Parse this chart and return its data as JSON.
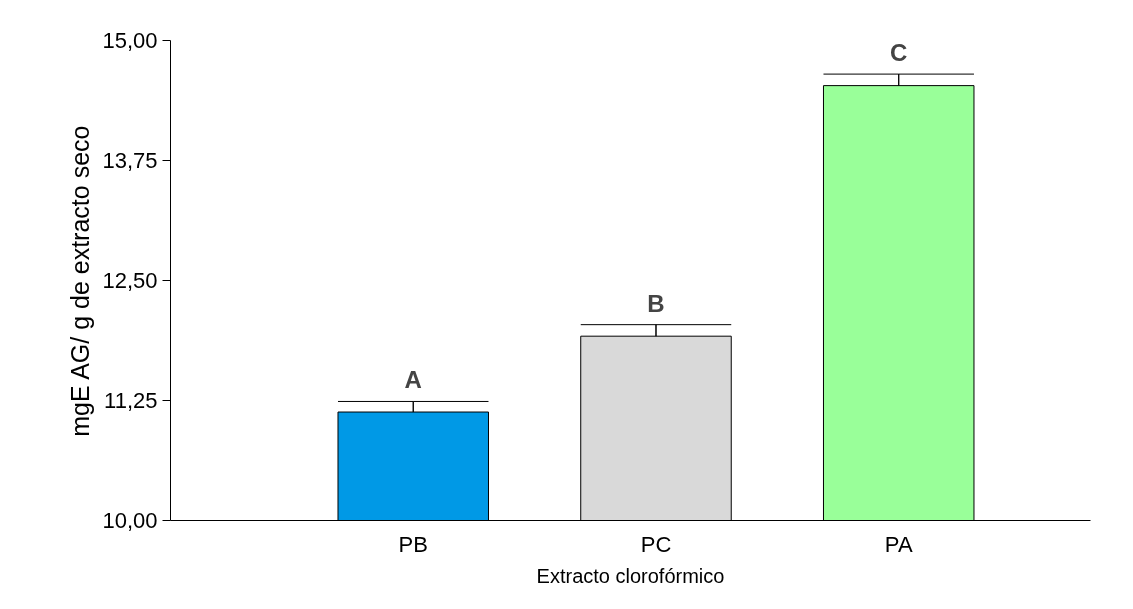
{
  "chart_data": {
    "type": "bar",
    "xlabel": "Extracto clorofórmico",
    "ylabel": "mgE AG/ g de extracto seco",
    "categories": [
      "PB",
      "PC",
      "PA"
    ],
    "values": [
      11.13,
      11.92,
      14.53
    ],
    "colors": [
      "#0099e6",
      "#d9d9d9",
      "#99ff99"
    ],
    "errors": [
      [
        11.13,
        11.24
      ],
      [
        11.92,
        12.04
      ],
      [
        14.53,
        14.65
      ]
    ],
    "ylim": [
      10,
      15
    ],
    "yticks": [
      {
        "value": 10,
        "label": "10,00"
      },
      {
        "value": 11.25,
        "label": "11,25"
      },
      {
        "value": 12.5,
        "label": "12,50"
      },
      {
        "value": 13.75,
        "label": "13,75"
      },
      {
        "value": 15,
        "label": "15,00"
      }
    ],
    "annotations": [
      "A",
      "B",
      "C"
    ],
    "grid": false
  }
}
